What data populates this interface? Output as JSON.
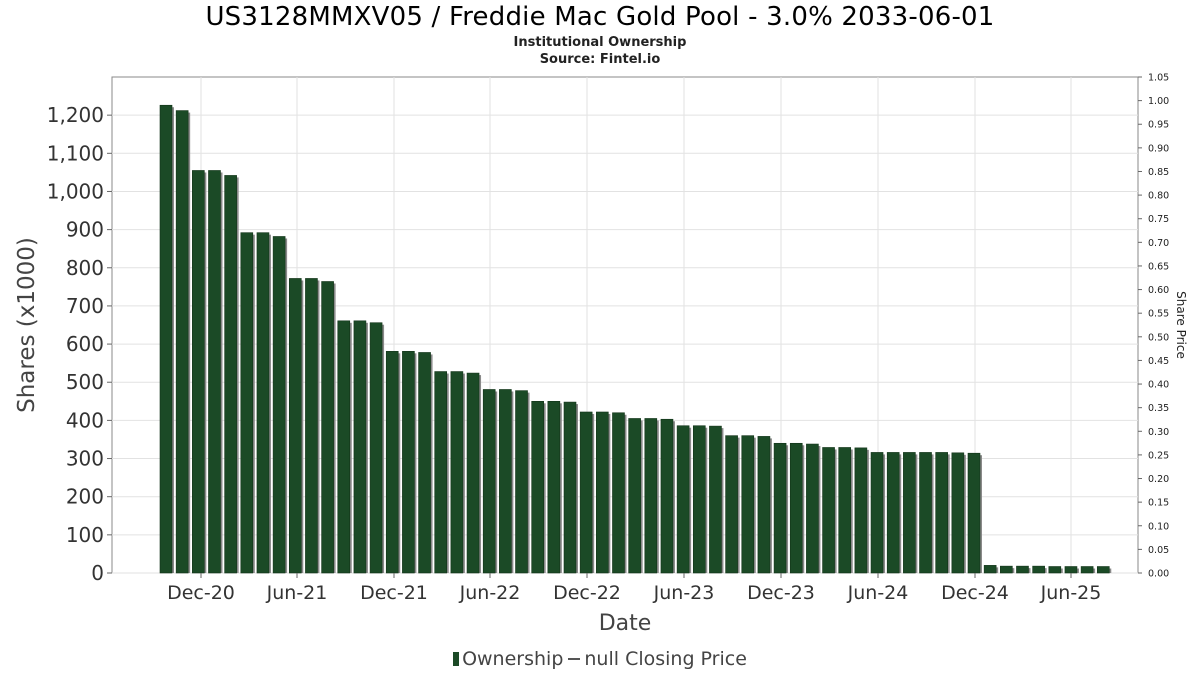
{
  "title": "US3128MMXV05 / Freddie Mac Gold Pool - 3.0% 2033-06-01",
  "subtitle": "Institutional Ownership",
  "source": "Source: Fintel.io",
  "legend": {
    "ownership": "Ownership",
    "price": "null Closing Price"
  },
  "colors": {
    "bar": "#1b4a26",
    "bar_shadow": "#8a8a8a",
    "grid": "#e2e2e2"
  },
  "chart_data": {
    "type": "bar",
    "xlabel": "Date",
    "ylabel": "Shares (x1000)",
    "y2label": "Share Price",
    "ylim": [
      0,
      1300
    ],
    "y2lim": [
      0,
      1.05
    ],
    "yticks": [
      "0",
      "100",
      "200",
      "300",
      "400",
      "500",
      "600",
      "700",
      "800",
      "900",
      "1,000",
      "1,100",
      "1,200"
    ],
    "y2ticks": [
      "0.00",
      "0.05",
      "0.10",
      "0.15",
      "0.20",
      "0.25",
      "0.30",
      "0.35",
      "0.40",
      "0.45",
      "0.50",
      "0.55",
      "0.60",
      "0.65",
      "0.70",
      "0.75",
      "0.80",
      "0.85",
      "0.90",
      "0.95",
      "1.00",
      "1.05"
    ],
    "xticks": [
      "Dec-20",
      "Jun-21",
      "Dec-21",
      "Jun-22",
      "Dec-22",
      "Jun-23",
      "Dec-23",
      "Jun-24",
      "Dec-24",
      "Jun-25"
    ],
    "grid": true,
    "legend_position": "bottom",
    "series": [
      {
        "name": "Ownership",
        "values": [
          1226,
          1212,
          1055,
          1055,
          1042,
          892,
          892,
          882,
          772,
          772,
          764,
          661,
          661,
          656,
          581,
          581,
          578,
          528,
          528,
          524,
          481,
          481,
          478,
          450,
          450,
          448,
          422,
          422,
          420,
          405,
          405,
          403,
          386,
          386,
          385,
          360,
          360,
          358,
          340,
          340,
          338,
          329,
          329,
          328,
          316,
          316,
          316,
          316,
          316,
          315,
          314,
          20,
          18,
          18,
          18,
          17,
          17,
          17,
          17
        ]
      }
    ]
  }
}
